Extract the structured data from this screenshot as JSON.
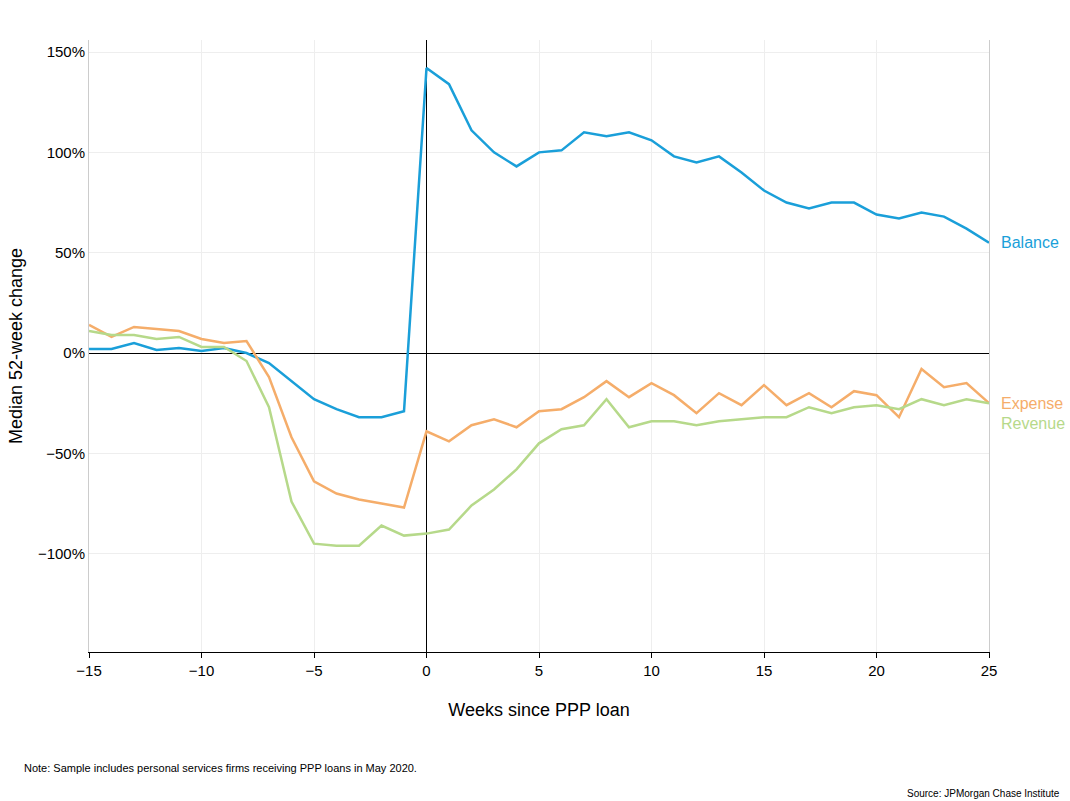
{
  "chart_data": {
    "type": "line",
    "x_label": "Weeks since PPP loan",
    "y_label": "Median 52-week change",
    "note": "Note: Sample includes personal services firms receiving PPP loans in May 2020.",
    "source": "Source: JPMorgan Chase Institute",
    "x": [
      -15,
      -14,
      -13,
      -12,
      -11,
      -10,
      -9,
      -8,
      -7,
      -6,
      -5,
      -4,
      -3,
      -2,
      -1,
      0,
      1,
      2,
      3,
      4,
      5,
      6,
      7,
      8,
      9,
      10,
      11,
      12,
      13,
      14,
      15,
      16,
      17,
      18,
      19,
      20,
      21,
      22,
      23,
      24,
      25
    ],
    "series": [
      {
        "name": "Balance",
        "color": "#1a9fd9",
        "values": [
          2,
          2,
          5,
          1.5,
          2.5,
          1,
          2.5,
          0,
          -5,
          -14,
          -23,
          -28,
          -32,
          -32,
          -29,
          142,
          134,
          111,
          100,
          93,
          100,
          101,
          110,
          108,
          110,
          106,
          98,
          95,
          98,
          90,
          81,
          75,
          72,
          75,
          75,
          69,
          67,
          70,
          68,
          62,
          55
        ]
      },
      {
        "name": "Expense",
        "color": "#f5ad6a",
        "values": [
          14,
          8,
          13,
          12,
          11,
          7,
          5,
          6,
          -12,
          -42,
          -64,
          -70,
          -73,
          -75,
          -77,
          -39,
          -44,
          -36,
          -33,
          -37,
          -29,
          -28,
          -22,
          -14,
          -22,
          -15,
          -21,
          -30,
          -20,
          -26,
          -16,
          -26,
          -20,
          -27,
          -19,
          -21,
          -32,
          -8,
          -17,
          -15,
          -25
        ]
      },
      {
        "name": "Revenue",
        "color": "#b6d98a",
        "values": [
          11,
          9,
          9,
          7,
          8,
          3,
          3,
          -4,
          -27,
          -74,
          -95,
          -96,
          -96,
          -86,
          -91,
          -90,
          -88,
          -76,
          -68,
          -58,
          -45,
          -38,
          -36,
          -23,
          -37,
          -34,
          -34,
          -36,
          -34,
          -33,
          -32,
          -32,
          -27,
          -30,
          -27,
          -26,
          -28,
          -23,
          -26,
          -23,
          -25
        ]
      }
    ],
    "xlim": [
      -15,
      25
    ],
    "xticks": [
      {
        "value": -15,
        "label": "−15"
      },
      {
        "value": -10,
        "label": "−10"
      },
      {
        "value": -5,
        "label": "−5"
      },
      0,
      5,
      10,
      15,
      20,
      25
    ],
    "ylim": [
      -149,
      156
    ],
    "yticks": [
      {
        "value": -100,
        "label": "−100%"
      },
      {
        "value": -50,
        "label": "−50%"
      },
      {
        "value": 0,
        "label": "0%"
      },
      {
        "value": 50,
        "label": "50%"
      },
      {
        "value": 100,
        "label": "100%"
      },
      {
        "value": 150,
        "label": "150%"
      }
    ],
    "grid": true
  }
}
